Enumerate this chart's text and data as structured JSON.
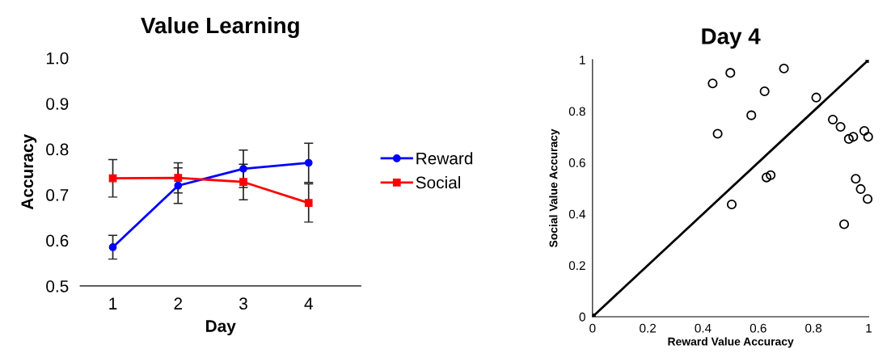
{
  "chart_data": [
    {
      "type": "line",
      "title": "Value Learning",
      "xlabel": "Day",
      "ylabel": "Accuracy",
      "categories": [
        "1",
        "2",
        "3",
        "4"
      ],
      "ylim": [
        0.5,
        1.0
      ],
      "yticks": [
        {
          "value": 0.5,
          "label": "0.5"
        },
        {
          "value": 0.6,
          "label": "0.6"
        },
        {
          "value": 0.7,
          "label": "0.7"
        },
        {
          "value": 0.8,
          "label": "0.8"
        },
        {
          "value": 0.9,
          "label": "0.9"
        },
        {
          "value": 1.0,
          "label": "1.0"
        }
      ],
      "legend": "right",
      "grid": false,
      "series": [
        {
          "name": "Reward",
          "color": "#0000ff",
          "marker": "circle",
          "values": [
            0.585,
            0.72,
            0.757,
            0.77
          ],
          "errors": [
            0.026,
            0.039,
            0.041,
            0.043
          ]
        },
        {
          "name": "Social",
          "color": "#ff0000",
          "marker": "square",
          "values": [
            0.736,
            0.737,
            0.728,
            0.682
          ],
          "errors": [
            0.041,
            0.033,
            0.039,
            0.042
          ]
        }
      ]
    },
    {
      "type": "scatter",
      "title": "Day 4",
      "xlabel": "Reward Value Accuracy",
      "ylabel": "Social Value Accuracy",
      "xlim": [
        0,
        1
      ],
      "ylim": [
        0,
        1
      ],
      "xticks": [
        0,
        0.2,
        0.4,
        0.6,
        0.8,
        1
      ],
      "yticks": [
        0,
        0.2,
        0.4,
        0.6,
        0.8,
        1
      ],
      "legend": false,
      "grid": false,
      "marker": "circle",
      "series": [
        {
          "type": "scatter",
          "color": "#000000",
          "x": [
            0.435,
            0.499,
            0.693,
            0.623,
            0.81,
            0.575,
            0.453,
            0.63,
            0.645,
            0.504,
            0.87,
            0.898,
            0.928,
            0.944,
            0.984,
            0.998,
            0.953,
            0.971,
            0.996,
            0.911
          ],
          "values": [
            0.908,
            0.949,
            0.966,
            0.877,
            0.853,
            0.784,
            0.712,
            0.542,
            0.551,
            0.437,
            0.767,
            0.739,
            0.692,
            0.7,
            0.723,
            0.7,
            0.537,
            0.497,
            0.458,
            0.36
          ]
        },
        {
          "type": "line",
          "color": "#000000",
          "x": [
            0,
            1
          ],
          "values": [
            0,
            1
          ]
        }
      ]
    }
  ]
}
